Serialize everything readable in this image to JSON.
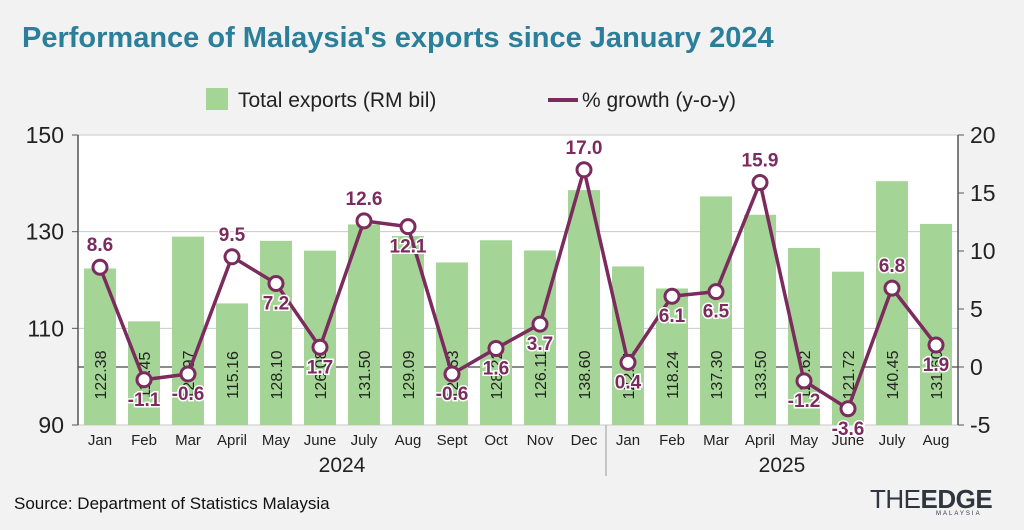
{
  "title": "Performance of Malaysia's exports since January 2024",
  "source": "Source: Department of Statistics Malaysia",
  "logo": {
    "part1": "THE",
    "part2": "EDGE",
    "sub": "MALAYSIA"
  },
  "colors": {
    "bar": "#a5d596",
    "line": "#7b2b5d",
    "title": "#2a7f9a",
    "grid": "#c9c9c9"
  },
  "chart_data": {
    "type": "bar",
    "categories": [
      "Jan",
      "Feb",
      "Mar",
      "April",
      "May",
      "June",
      "July",
      "Aug",
      "Sept",
      "Oct",
      "Nov",
      "Dec",
      "Jan",
      "Feb",
      "Mar",
      "April",
      "May",
      "June",
      "July",
      "Aug"
    ],
    "year_groups": [
      {
        "label": "2024",
        "start": 0,
        "end": 11
      },
      {
        "label": "2025",
        "start": 12,
        "end": 19
      }
    ],
    "series": [
      {
        "name": "Total exports (RM bil)",
        "kind": "bar",
        "axis": "left",
        "values": [
          122.38,
          111.45,
          128.97,
          115.16,
          128.1,
          126.08,
          131.5,
          129.09,
          123.63,
          128.22,
          126.11,
          138.6,
          122.81,
          118.24,
          137.3,
          133.5,
          126.62,
          121.72,
          140.45,
          131.6
        ],
        "labels": [
          "122.38",
          "111.45",
          "128.97",
          "115.16",
          "128.10",
          "126.08",
          "131.50",
          "129.09",
          "123.63",
          "128.22",
          "126.11",
          "138.60",
          "122.81",
          "118.24",
          "137.30",
          "133.50",
          "126.62",
          "121.72",
          "140.45",
          "131.60"
        ]
      },
      {
        "name": "% growth (y-o-y)",
        "kind": "line",
        "axis": "right",
        "values": [
          8.6,
          -1.1,
          -0.6,
          9.5,
          7.2,
          1.7,
          12.6,
          12.1,
          -0.6,
          1.6,
          3.7,
          17.0,
          0.4,
          6.1,
          6.5,
          15.9,
          -1.2,
          -3.6,
          6.8,
          1.9
        ],
        "labels": [
          "8.6",
          "-1.1",
          "-0.6",
          "9.5",
          "7.2",
          "1.7",
          "12.6",
          "12.1",
          "-0.6",
          "1.6",
          "3.7",
          "17.0",
          "0.4",
          "6.1",
          "6.5",
          "15.9",
          "-1.2",
          "-3.6",
          "6.8",
          "1.9"
        ]
      }
    ],
    "y_left": {
      "min": 90,
      "max": 150,
      "ticks": [
        "90",
        "110",
        "130",
        "150"
      ]
    },
    "y_right": {
      "min": -5,
      "max": 20,
      "ticks": [
        "-5",
        "0",
        "5",
        "10",
        "15",
        "20"
      ]
    },
    "grid": "horizontal",
    "legend": "top"
  }
}
